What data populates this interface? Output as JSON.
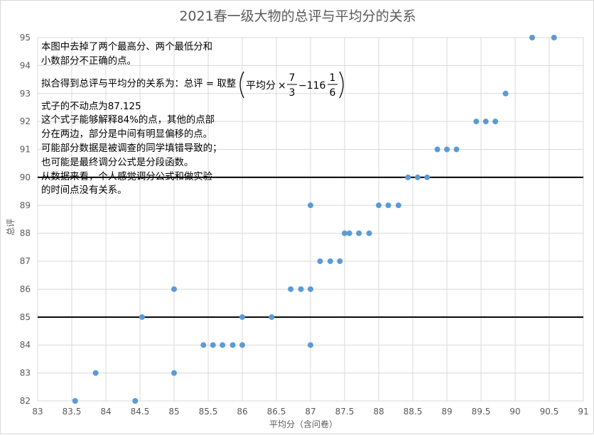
{
  "chart_data": {
    "type": "scatter",
    "title": "2021春一级大物的总评与平均分的关系",
    "xlabel": "平均分（含问卷）",
    "ylabel": "总评",
    "xlim": [
      83,
      91
    ],
    "ylim": [
      82,
      95
    ],
    "x_ticks": [
      83,
      83.5,
      84,
      84.5,
      85,
      85.5,
      86,
      86.5,
      87,
      87.5,
      88,
      88.5,
      89,
      89.5,
      90,
      90.5,
      91
    ],
    "x_tick_labels": [
      "83",
      "83.5",
      "84",
      "84.5",
      "85",
      "85.5",
      "86",
      "86.5",
      "87",
      "87.5",
      "88",
      "88.5",
      "89",
      "89.5",
      "90",
      "90.5",
      "91"
    ],
    "y_ticks": [
      82,
      83,
      84,
      85,
      86,
      87,
      88,
      89,
      90,
      91,
      92,
      93,
      94,
      95
    ],
    "y_tick_labels": [
      "82",
      "83",
      "84",
      "85",
      "86",
      "87",
      "88",
      "89",
      "90",
      "91",
      "92",
      "93",
      "94",
      "95"
    ],
    "grid": true,
    "reference_lines_y": [
      85,
      90
    ],
    "point_color": "#5b9bd5",
    "points": [
      {
        "x": 83.55,
        "y": 82
      },
      {
        "x": 83.85,
        "y": 83
      },
      {
        "x": 84.43,
        "y": 82
      },
      {
        "x": 84.53,
        "y": 85
      },
      {
        "x": 85.0,
        "y": 86
      },
      {
        "x": 85.0,
        "y": 83
      },
      {
        "x": 85.43,
        "y": 84
      },
      {
        "x": 85.57,
        "y": 84
      },
      {
        "x": 85.71,
        "y": 84
      },
      {
        "x": 85.86,
        "y": 84
      },
      {
        "x": 86.0,
        "y": 84
      },
      {
        "x": 86.0,
        "y": 85
      },
      {
        "x": 86.43,
        "y": 85
      },
      {
        "x": 86.71,
        "y": 86
      },
      {
        "x": 86.86,
        "y": 86
      },
      {
        "x": 87.0,
        "y": 86
      },
      {
        "x": 87.0,
        "y": 89
      },
      {
        "x": 87.0,
        "y": 84
      },
      {
        "x": 87.14,
        "y": 87
      },
      {
        "x": 87.29,
        "y": 87
      },
      {
        "x": 87.43,
        "y": 87
      },
      {
        "x": 87.5,
        "y": 88
      },
      {
        "x": 87.57,
        "y": 88
      },
      {
        "x": 87.71,
        "y": 88
      },
      {
        "x": 87.86,
        "y": 88
      },
      {
        "x": 88.0,
        "y": 89
      },
      {
        "x": 88.14,
        "y": 89
      },
      {
        "x": 88.29,
        "y": 89
      },
      {
        "x": 88.43,
        "y": 90
      },
      {
        "x": 88.57,
        "y": 90
      },
      {
        "x": 88.71,
        "y": 90
      },
      {
        "x": 88.86,
        "y": 91
      },
      {
        "x": 89.0,
        "y": 91
      },
      {
        "x": 89.14,
        "y": 91
      },
      {
        "x": 89.43,
        "y": 92
      },
      {
        "x": 89.57,
        "y": 92
      },
      {
        "x": 89.71,
        "y": 92
      },
      {
        "x": 89.86,
        "y": 93
      },
      {
        "x": 90.25,
        "y": 95
      },
      {
        "x": 90.57,
        "y": 95
      }
    ],
    "annotation": {
      "lines_top": [
        "本图中去掉了两个最高分、两个最低分和",
        "小数部分不正确的点。"
      ],
      "formula_prefix": "拟合得到总评与平均分的关系为：总评 = 取整",
      "formula_var": "平均分",
      "formula_times": "×",
      "frac_num": "7",
      "frac_den": "3",
      "formula_minus": "−116",
      "mixed_num": "1",
      "mixed_den": "6",
      "lines_bottom": [
        "式子的不动点为87.125",
        "这个式子能够解释84%的点，其他的点部",
        "分在两边，部分是中间有明显偏移的点。",
        "可能部分数据是被调查的同学填错导致的；",
        "也可能是最终调分公式是分段函数。",
        "从数据来看，个人感觉调分公式和做实验",
        "的时间点没有关系。"
      ]
    }
  }
}
